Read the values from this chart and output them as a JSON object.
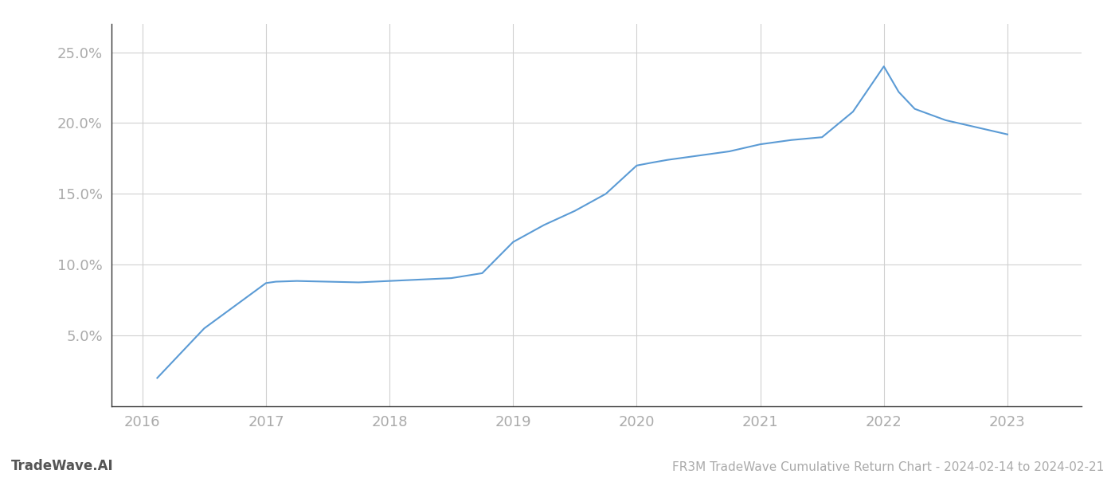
{
  "x_values": [
    2016.12,
    2016.5,
    2017.0,
    2017.08,
    2017.25,
    2017.5,
    2017.75,
    2018.0,
    2018.25,
    2018.5,
    2018.75,
    2019.0,
    2019.25,
    2019.5,
    2019.75,
    2020.0,
    2020.12,
    2020.25,
    2020.5,
    2020.75,
    2021.0,
    2021.25,
    2021.5,
    2021.75,
    2022.0,
    2022.12,
    2022.25,
    2022.5,
    2023.0
  ],
  "y_values": [
    2.0,
    5.5,
    8.7,
    8.8,
    8.85,
    8.8,
    8.75,
    8.85,
    8.95,
    9.05,
    9.4,
    11.6,
    12.8,
    13.8,
    15.0,
    17.0,
    17.2,
    17.4,
    17.7,
    18.0,
    18.5,
    18.8,
    19.0,
    20.8,
    24.0,
    22.2,
    21.0,
    20.2,
    19.2
  ],
  "line_color": "#5b9bd5",
  "line_width": 1.5,
  "title": "FR3M TradeWave Cumulative Return Chart - 2024-02-14 to 2024-02-21",
  "watermark": "TradeWave.AI",
  "ylim": [
    0,
    27
  ],
  "yticks": [
    5.0,
    10.0,
    15.0,
    20.0,
    25.0
  ],
  "ytick_labels": [
    "5.0%",
    "10.0%",
    "15.0%",
    "20.0%",
    "25.0%"
  ],
  "xticks": [
    2016,
    2017,
    2018,
    2019,
    2020,
    2021,
    2022,
    2023
  ],
  "xlim": [
    2015.75,
    2023.6
  ],
  "background_color": "#ffffff",
  "grid_color": "#d0d0d0",
  "title_fontsize": 11,
  "tick_fontsize": 13,
  "watermark_fontsize": 12
}
